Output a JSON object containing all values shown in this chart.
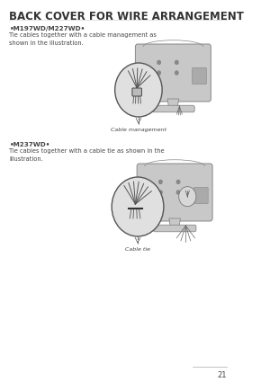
{
  "title": "BACK COVER FOR WIRE ARRANGEMENT",
  "section1_header": "•M197WD/M227WD•",
  "section1_text": "Tie cables together with a cable management as\nshown in the illustration.",
  "section1_caption": "Cable management",
  "section2_header": "•M237WD•",
  "section2_text": "Tie cables together with a cable tie as shown in the\nillustration.",
  "section2_caption": "Cable tie",
  "page_number": "21",
  "bg_color": "#ffffff",
  "text_color": "#444444",
  "title_color": "#333333",
  "monitor_color": "#c8c8c8",
  "monitor_edge": "#888888",
  "monitor_dark": "#999999",
  "title_fontsize": 8.5,
  "header_fontsize": 5.2,
  "body_fontsize": 4.8,
  "caption_fontsize": 4.5,
  "page_fontsize": 6
}
